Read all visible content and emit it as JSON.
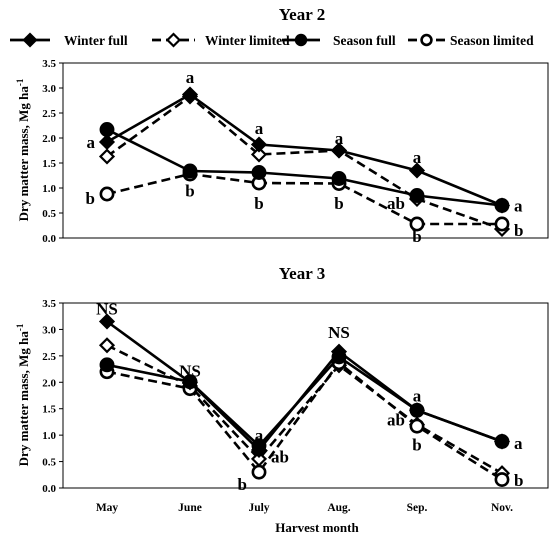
{
  "legend": [
    {
      "name": "Winter full",
      "marker": "diamond",
      "filled": true,
      "dash": false
    },
    {
      "name": "Winter limited",
      "marker": "diamond",
      "filled": false,
      "dash": true
    },
    {
      "name": "Season full",
      "marker": "circle",
      "filled": true,
      "dash": false
    },
    {
      "name": "Season limited",
      "marker": "circle",
      "filled": false,
      "dash": true
    }
  ],
  "x_axis_label": "Harvest month",
  "chart_data": [
    {
      "type": "line",
      "title": "Year 2",
      "ylabel": "Dry matter mass, Mg ha",
      "ylabel_superscript": "-1",
      "ylim": [
        0,
        3.5
      ],
      "yticks": [
        "0.0",
        "0.5",
        "1.0",
        "1.5",
        "2.0",
        "2.5",
        "3.0",
        "3.5"
      ],
      "grid": false,
      "series": [
        {
          "name": "Winter full",
          "categories": [
            "May",
            "June",
            "July",
            "Aug.",
            "Sep.",
            "Nov."
          ],
          "values": [
            1.92,
            2.87,
            1.87,
            1.75,
            1.35,
            0.65
          ]
        },
        {
          "name": "Winter limited",
          "categories": [
            "May",
            "June",
            "July",
            "Aug.",
            "Sep.",
            "Nov."
          ],
          "values": [
            1.63,
            2.83,
            1.67,
            1.75,
            0.78,
            0.18
          ]
        },
        {
          "name": "Season full",
          "categories": [
            "May",
            "June",
            "July",
            "Aug.",
            "Sep.",
            "Nov."
          ],
          "values": [
            2.17,
            1.34,
            1.31,
            1.19,
            0.85,
            0.65
          ]
        },
        {
          "name": "Season limited",
          "categories": [
            "May",
            "June",
            "July",
            "Aug.",
            "Sep.",
            "Nov."
          ],
          "values": [
            0.88,
            1.28,
            1.1,
            1.09,
            0.28,
            0.28
          ]
        }
      ],
      "annotations": [
        {
          "text": "a",
          "category": "May",
          "y": 1.92,
          "anchor": "left"
        },
        {
          "text": "b",
          "category": "May",
          "y": 0.8,
          "anchor": "left"
        },
        {
          "text": "a",
          "category": "June",
          "y": 3.22,
          "anchor": "center"
        },
        {
          "text": "b",
          "category": "June",
          "y": 0.95,
          "anchor": "center"
        },
        {
          "text": "a",
          "category": "July",
          "y": 2.2,
          "anchor": "center"
        },
        {
          "text": "b",
          "category": "July",
          "y": 0.7,
          "anchor": "center"
        },
        {
          "text": "a",
          "category": "Aug.",
          "y": 2.0,
          "anchor": "center"
        },
        {
          "text": "b",
          "category": "Aug.",
          "y": 0.7,
          "anchor": "center"
        },
        {
          "text": "a",
          "category": "Sep.",
          "y": 1.62,
          "anchor": "center"
        },
        {
          "text": "ab",
          "category": "Sep.",
          "y": 0.7,
          "anchor": "left"
        },
        {
          "text": "b",
          "category": "Sep.",
          "y": 0.04,
          "anchor": "center"
        },
        {
          "text": "a",
          "category": "Nov.",
          "y": 0.65,
          "anchor": "right"
        },
        {
          "text": "b",
          "category": "Nov.",
          "y": 0.16,
          "anchor": "right"
        }
      ]
    },
    {
      "type": "line",
      "title": "Year 3",
      "ylabel": "Dry matter mass, Mg ha",
      "ylabel_superscript": "-1",
      "xlabel": "Harvest month",
      "ylim": [
        0,
        3.5
      ],
      "yticks": [
        "0.0",
        "0.5",
        "1.0",
        "1.5",
        "2.0",
        "2.5",
        "3.0",
        "3.5"
      ],
      "grid": false,
      "categories": [
        "May",
        "June",
        "July",
        "Aug.",
        "Sep.",
        "Nov."
      ],
      "series": [
        {
          "name": "Winter full",
          "values": [
            3.15,
            2.0,
            0.72,
            2.58,
            1.47,
            0.88
          ]
        },
        {
          "name": "Winter limited",
          "values": [
            2.7,
            1.93,
            0.55,
            2.32,
            1.2,
            0.28
          ]
        },
        {
          "name": "Season full",
          "values": [
            2.33,
            2.01,
            0.8,
            2.48,
            1.47,
            0.88
          ]
        },
        {
          "name": "Season limited",
          "values": [
            2.2,
            1.88,
            0.3,
            2.37,
            1.17,
            0.16
          ]
        }
      ],
      "annotations": [
        {
          "text": "NS",
          "category": "May",
          "y": 3.4,
          "anchor": "center"
        },
        {
          "text": "NS",
          "category": "June",
          "y": 2.22,
          "anchor": "center"
        },
        {
          "text": "a",
          "category": "July",
          "y": 1.0,
          "anchor": "center"
        },
        {
          "text": "ab",
          "category": "July",
          "y": 0.6,
          "anchor": "right"
        },
        {
          "text": "b",
          "category": "July",
          "y": 0.08,
          "anchor": "left"
        },
        {
          "text": "NS",
          "category": "Aug.",
          "y": 2.95,
          "anchor": "center"
        },
        {
          "text": "a",
          "category": "Sep.",
          "y": 1.75,
          "anchor": "center"
        },
        {
          "text": "ab",
          "category": "Sep.",
          "y": 1.3,
          "anchor": "left"
        },
        {
          "text": "b",
          "category": "Sep.",
          "y": 0.82,
          "anchor": "center"
        },
        {
          "text": "a",
          "category": "Nov.",
          "y": 0.85,
          "anchor": "right"
        },
        {
          "text": "b",
          "category": "Nov.",
          "y": 0.15,
          "anchor": "right"
        }
      ]
    }
  ]
}
